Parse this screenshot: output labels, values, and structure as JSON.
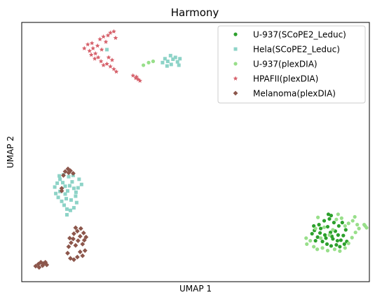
{
  "chart_data": {
    "type": "scatter",
    "title": "Harmony",
    "xlabel": "UMAP 1",
    "ylabel": "UMAP 2",
    "xlim": [
      0,
      100
    ],
    "ylim": [
      0,
      100
    ],
    "grid": false,
    "axis_ticks": false,
    "legend": {
      "position": "top-right"
    },
    "series": [
      {
        "name": "U-937(SCoPE2_Leduc)",
        "color": "#2ca02c",
        "marker": "circle",
        "points": [
          [
            83.5,
            18.5
          ],
          [
            84.2,
            19.8
          ],
          [
            85.1,
            17.2
          ],
          [
            86.0,
            20.5
          ],
          [
            87.2,
            18.0
          ],
          [
            88.0,
            21.2
          ],
          [
            88.8,
            19.0
          ],
          [
            89.5,
            16.5
          ],
          [
            90.2,
            19.5
          ],
          [
            91.0,
            18.0
          ],
          [
            91.8,
            16.0
          ],
          [
            92.5,
            17.8
          ],
          [
            93.2,
            20.0
          ],
          [
            86.5,
            15.5
          ],
          [
            87.8,
            14.5
          ],
          [
            89.0,
            13.8
          ],
          [
            90.5,
            14.2
          ],
          [
            91.5,
            13.5
          ],
          [
            92.8,
            14.5
          ],
          [
            84.5,
            15.8
          ],
          [
            85.5,
            22.0
          ],
          [
            87.0,
            23.5
          ],
          [
            88.5,
            24.2
          ],
          [
            89.8,
            22.8
          ],
          [
            91.2,
            21.5
          ],
          [
            92.2,
            22.8
          ],
          [
            85.8,
            18.8
          ],
          [
            87.5,
            16.8
          ],
          [
            89.2,
            17.5
          ],
          [
            90.8,
            15.8
          ],
          [
            88.2,
            26.0
          ],
          [
            89.0,
            25.5
          ],
          [
            84.0,
            21.5
          ],
          [
            93.5,
            15.5
          ]
        ]
      },
      {
        "name": "Hela(SCoPE2_Leduc)",
        "color": "#8dd3c7",
        "marker": "square",
        "points": [
          [
            9.5,
            36.5
          ],
          [
            10.2,
            38.0
          ],
          [
            11.0,
            39.5
          ],
          [
            11.8,
            38.2
          ],
          [
            12.5,
            36.8
          ],
          [
            13.2,
            35.0
          ],
          [
            13.8,
            37.0
          ],
          [
            14.5,
            38.5
          ],
          [
            15.0,
            36.0
          ],
          [
            15.6,
            34.5
          ],
          [
            16.2,
            36.2
          ],
          [
            9.8,
            34.0
          ],
          [
            10.5,
            32.5
          ],
          [
            11.5,
            31.0
          ],
          [
            12.2,
            29.5
          ],
          [
            13.0,
            28.0
          ],
          [
            14.0,
            27.5
          ],
          [
            15.0,
            28.5
          ],
          [
            15.8,
            30.5
          ],
          [
            11.0,
            34.8
          ],
          [
            12.8,
            32.0
          ],
          [
            14.2,
            31.5
          ],
          [
            13.5,
            40.5
          ],
          [
            12.0,
            41.2
          ],
          [
            10.8,
            40.8
          ],
          [
            14.8,
            41.0
          ],
          [
            16.5,
            39.5
          ],
          [
            17.2,
            37.5
          ],
          [
            15.5,
            33.0
          ],
          [
            13.0,
            25.8
          ],
          [
            12.5,
            33.8
          ],
          [
            40.5,
            84.5
          ],
          [
            41.2,
            86.0
          ],
          [
            42.0,
            85.0
          ],
          [
            42.8,
            87.2
          ],
          [
            43.5,
            85.8
          ],
          [
            44.2,
            86.5
          ],
          [
            44.8,
            84.8
          ],
          [
            45.5,
            86.0
          ],
          [
            43.0,
            83.8
          ],
          [
            41.8,
            83.2
          ],
          [
            45.2,
            83.5
          ],
          [
            24.5,
            89.5
          ]
        ]
      },
      {
        "name": "U-937(plexDIA)",
        "color": "#98df8a",
        "marker": "circle",
        "points": [
          [
            82.0,
            14.5
          ],
          [
            83.0,
            15.8
          ],
          [
            81.8,
            16.8
          ],
          [
            84.0,
            13.5
          ],
          [
            85.0,
            12.5
          ],
          [
            86.5,
            13.0
          ],
          [
            88.0,
            12.0
          ],
          [
            90.0,
            12.5
          ],
          [
            91.5,
            11.8
          ],
          [
            93.0,
            13.0
          ],
          [
            94.0,
            14.8
          ],
          [
            95.0,
            17.0
          ],
          [
            96.0,
            19.0
          ],
          [
            97.0,
            20.5
          ],
          [
            96.5,
            22.0
          ],
          [
            95.2,
            23.5
          ],
          [
            94.0,
            22.5
          ],
          [
            93.0,
            21.5
          ],
          [
            92.0,
            24.5
          ],
          [
            90.5,
            24.0
          ],
          [
            91.0,
            26.0
          ],
          [
            89.5,
            20.0
          ],
          [
            88.5,
            18.0
          ],
          [
            86.0,
            16.8
          ],
          [
            87.0,
            21.0
          ],
          [
            85.2,
            24.8
          ],
          [
            84.5,
            20.5
          ],
          [
            98.5,
            22.0
          ],
          [
            99.2,
            20.8
          ],
          [
            98.8,
            21.5
          ],
          [
            95.8,
            25.0
          ],
          [
            35.0,
            83.5
          ],
          [
            36.5,
            84.5
          ],
          [
            37.8,
            85.0
          ]
        ]
      },
      {
        "name": "HPAFII(plexDIA)",
        "color": "#d6616b",
        "marker": "star",
        "points": [
          [
            18.0,
            90.0
          ],
          [
            19.0,
            91.5
          ],
          [
            19.5,
            89.0
          ],
          [
            20.2,
            92.0
          ],
          [
            20.5,
            90.0
          ],
          [
            21.2,
            88.0
          ],
          [
            21.8,
            91.0
          ],
          [
            22.5,
            93.5
          ],
          [
            23.0,
            89.5
          ],
          [
            23.5,
            94.5
          ],
          [
            24.2,
            92.5
          ],
          [
            24.8,
            95.0
          ],
          [
            25.5,
            96.0
          ],
          [
            26.5,
            96.5
          ],
          [
            27.0,
            94.0
          ],
          [
            22.0,
            86.5
          ],
          [
            22.8,
            85.0
          ],
          [
            23.5,
            83.5
          ],
          [
            24.5,
            84.0
          ],
          [
            25.5,
            83.0
          ],
          [
            26.5,
            82.0
          ],
          [
            27.2,
            81.0
          ],
          [
            21.0,
            86.0
          ],
          [
            20.0,
            87.5
          ],
          [
            25.0,
            86.5
          ],
          [
            26.0,
            85.5
          ],
          [
            32.0,
            79.5
          ],
          [
            32.8,
            78.5
          ],
          [
            33.5,
            78.0
          ],
          [
            34.0,
            77.5
          ],
          [
            33.0,
            79.0
          ]
        ]
      },
      {
        "name": "Melanoma(plexDIA)",
        "color": "#8c564b",
        "marker": "diamond",
        "points": [
          [
            12.5,
            42.5
          ],
          [
            13.3,
            43.5
          ],
          [
            14.0,
            42.8
          ],
          [
            14.8,
            41.8
          ],
          [
            12.0,
            41.0
          ],
          [
            13.5,
            42.0
          ],
          [
            11.5,
            35.0
          ],
          [
            11.5,
            36.0
          ],
          [
            13.5,
            13.5
          ],
          [
            14.2,
            15.0
          ],
          [
            14.8,
            16.5
          ],
          [
            15.5,
            14.0
          ],
          [
            16.2,
            15.8
          ],
          [
            16.8,
            17.5
          ],
          [
            17.5,
            14.5
          ],
          [
            18.0,
            16.0
          ],
          [
            15.0,
            18.5
          ],
          [
            16.0,
            19.5
          ],
          [
            17.0,
            20.5
          ],
          [
            17.8,
            18.8
          ],
          [
            18.5,
            17.2
          ],
          [
            13.2,
            11.0
          ],
          [
            14.0,
            9.0
          ],
          [
            15.0,
            8.5
          ],
          [
            16.0,
            9.5
          ],
          [
            16.8,
            11.5
          ],
          [
            17.5,
            10.0
          ],
          [
            18.2,
            12.0
          ],
          [
            13.8,
            16.8
          ],
          [
            15.5,
            20.8
          ],
          [
            4.0,
            6.0
          ],
          [
            4.8,
            6.8
          ],
          [
            5.5,
            7.5
          ],
          [
            6.2,
            7.0
          ],
          [
            6.8,
            7.5
          ],
          [
            7.2,
            6.5
          ],
          [
            5.0,
            5.5
          ],
          [
            6.0,
            6.2
          ]
        ]
      }
    ]
  }
}
